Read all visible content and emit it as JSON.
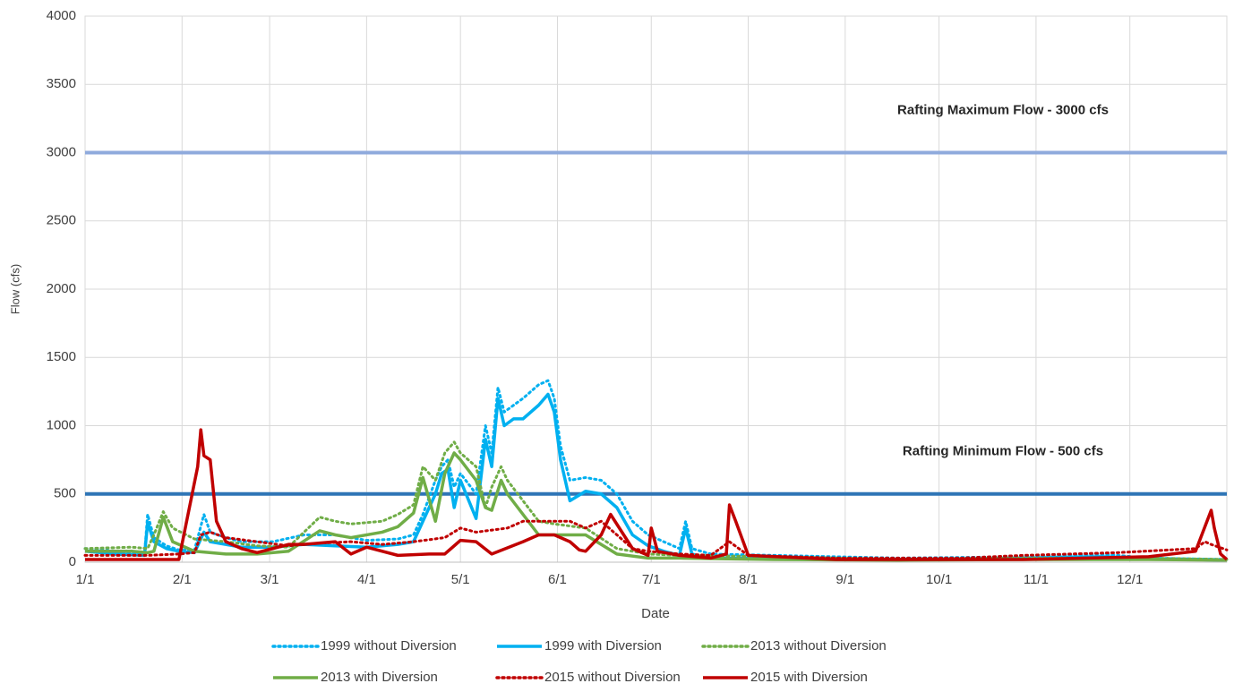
{
  "chart_data": {
    "type": "line",
    "x_label": "Date",
    "y_label": "Flow (cfs)",
    "xlim": [
      0,
      365
    ],
    "xticks": [
      {
        "value": 0,
        "label": "1/1"
      },
      {
        "value": 31,
        "label": "2/1"
      },
      {
        "value": 59,
        "label": "3/1"
      },
      {
        "value": 90,
        "label": "4/1"
      },
      {
        "value": 120,
        "label": "5/1"
      },
      {
        "value": 151,
        "label": "6/1"
      },
      {
        "value": 181,
        "label": "7/1"
      },
      {
        "value": 212,
        "label": "8/1"
      },
      {
        "value": 243,
        "label": "9/1"
      },
      {
        "value": 273,
        "label": "10/1"
      },
      {
        "value": 304,
        "label": "11/1"
      },
      {
        "value": 334,
        "label": "12/1"
      }
    ],
    "ylim": [
      0,
      4000
    ],
    "yticks": [
      0,
      500,
      1000,
      1500,
      2000,
      2500,
      3000,
      3500,
      4000
    ],
    "grid": true,
    "legend": "bottom",
    "reference_lines": [
      {
        "value": 3000,
        "label": "Rafting Maximum Flow - 3000 cfs",
        "color": "#8faadc"
      },
      {
        "value": 500,
        "label": "Rafting Minimum Flow - 500 cfs",
        "color": "#2e75b6"
      }
    ],
    "series": [
      {
        "name": "1999 without Diversion",
        "color": "#00b0f0",
        "dashed": true,
        "x": [
          0,
          10,
          19,
          20,
          22,
          26,
          30,
          35,
          38,
          40,
          45,
          50,
          60,
          70,
          80,
          90,
          100,
          105,
          108,
          112,
          114,
          116,
          118,
          120,
          125,
          128,
          130,
          132,
          134,
          137,
          140,
          145,
          148,
          150,
          152,
          155,
          160,
          165,
          170,
          175,
          180,
          185,
          190,
          192,
          194,
          197,
          200,
          220,
          260,
          300,
          325,
          340,
          365
        ],
        "values": [
          100,
          80,
          60,
          350,
          180,
          120,
          90,
          90,
          350,
          220,
          180,
          150,
          150,
          200,
          200,
          160,
          170,
          200,
          350,
          600,
          700,
          750,
          550,
          650,
          500,
          1000,
          800,
          1280,
          1100,
          1150,
          1200,
          1300,
          1330,
          1200,
          850,
          600,
          620,
          600,
          500,
          300,
          200,
          150,
          100,
          300,
          100,
          80,
          60,
          50,
          30,
          40,
          60,
          30,
          20
        ]
      },
      {
        "name": "1999 with Diversion",
        "color": "#00b0f0",
        "dashed": false,
        "x": [
          0,
          10,
          19,
          20,
          22,
          26,
          30,
          35,
          38,
          40,
          45,
          50,
          60,
          70,
          80,
          90,
          100,
          105,
          108,
          112,
          114,
          116,
          118,
          120,
          125,
          128,
          130,
          132,
          134,
          137,
          140,
          145,
          148,
          150,
          152,
          155,
          160,
          165,
          170,
          175,
          180,
          185,
          190,
          192,
          194,
          197,
          200,
          220,
          260,
          300,
          325,
          340,
          365
        ],
        "values": [
          80,
          60,
          50,
          290,
          150,
          100,
          80,
          70,
          220,
          150,
          130,
          110,
          110,
          130,
          120,
          110,
          130,
          150,
          300,
          500,
          650,
          680,
          400,
          600,
          320,
          900,
          700,
          1200,
          1000,
          1050,
          1050,
          1150,
          1230,
          1100,
          750,
          450,
          520,
          500,
          400,
          200,
          120,
          80,
          50,
          250,
          60,
          40,
          30,
          30,
          20,
          30,
          40,
          25,
          15
        ]
      },
      {
        "name": "2013 without Diversion",
        "color": "#70ad47",
        "dashed": true,
        "x": [
          0,
          15,
          20,
          22,
          25,
          28,
          35,
          45,
          55,
          65,
          75,
          80,
          85,
          95,
          100,
          105,
          108,
          112,
          115,
          118,
          120,
          125,
          128,
          130,
          133,
          135,
          140,
          145,
          150,
          160,
          170,
          180,
          190,
          220,
          260,
          300,
          340,
          365
        ],
        "values": [
          100,
          110,
          100,
          200,
          370,
          250,
          170,
          150,
          120,
          110,
          330,
          300,
          280,
          300,
          350,
          420,
          700,
          600,
          800,
          880,
          800,
          700,
          400,
          550,
          700,
          600,
          450,
          300,
          280,
          250,
          100,
          60,
          50,
          40,
          20,
          30,
          30,
          20
        ]
      },
      {
        "name": "2013 with Diversion",
        "color": "#70ad47",
        "dashed": false,
        "x": [
          0,
          15,
          20,
          22,
          25,
          28,
          35,
          45,
          55,
          65,
          75,
          80,
          85,
          95,
          100,
          105,
          108,
          112,
          115,
          118,
          120,
          125,
          128,
          130,
          133,
          135,
          140,
          145,
          150,
          160,
          170,
          180,
          190,
          220,
          260,
          300,
          340,
          365
        ],
        "values": [
          80,
          80,
          70,
          80,
          330,
          150,
          80,
          60,
          60,
          80,
          230,
          200,
          180,
          220,
          260,
          360,
          620,
          300,
          650,
          800,
          750,
          600,
          400,
          380,
          600,
          500,
          350,
          200,
          200,
          200,
          60,
          30,
          30,
          20,
          15,
          20,
          20,
          15
        ]
      },
      {
        "name": "2015 without Diversion",
        "color": "#c00000",
        "dashed": true,
        "x": [
          0,
          20,
          30,
          35,
          37,
          40,
          45,
          55,
          65,
          75,
          85,
          95,
          105,
          115,
          120,
          125,
          135,
          140,
          145,
          150,
          155,
          160,
          165,
          175,
          180,
          190,
          200,
          206,
          212,
          240,
          280,
          300,
          330,
          355,
          358,
          360,
          365
        ],
        "values": [
          50,
          50,
          60,
          70,
          200,
          220,
          180,
          150,
          120,
          140,
          150,
          130,
          150,
          180,
          250,
          220,
          250,
          300,
          300,
          300,
          300,
          250,
          300,
          100,
          80,
          60,
          50,
          150,
          50,
          30,
          30,
          50,
          70,
          100,
          150,
          130,
          90
        ]
      },
      {
        "name": "2015 with Diversion",
        "color": "#c00000",
        "dashed": false,
        "x": [
          0,
          30,
          36,
          37,
          38,
          40,
          42,
          45,
          50,
          55,
          60,
          65,
          70,
          80,
          85,
          90,
          100,
          110,
          115,
          120,
          125,
          130,
          140,
          145,
          150,
          155,
          158,
          160,
          165,
          168,
          175,
          180,
          181,
          183,
          190,
          200,
          205,
          206,
          208,
          212,
          240,
          300,
          340,
          355,
          360,
          361,
          363,
          365
        ],
        "values": [
          20,
          20,
          700,
          970,
          780,
          750,
          300,
          150,
          100,
          70,
          100,
          130,
          130,
          150,
          60,
          110,
          50,
          60,
          60,
          160,
          150,
          60,
          150,
          200,
          200,
          150,
          90,
          80,
          200,
          350,
          100,
          50,
          250,
          80,
          50,
          30,
          60,
          420,
          300,
          50,
          20,
          20,
          40,
          80,
          380,
          250,
          60,
          20
        ]
      }
    ]
  }
}
